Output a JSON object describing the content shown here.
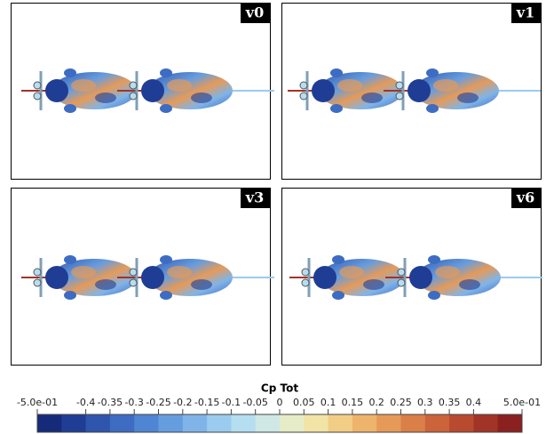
{
  "panels": [
    {
      "label": "v0"
    },
    {
      "label": "v1"
    },
    {
      "label": "v3"
    },
    {
      "label": "v6"
    }
  ],
  "colorbar": {
    "title": "Cp Tot",
    "lim": [
      -0.5,
      0.5
    ],
    "ticks": [
      {
        "value": -0.5,
        "label": "-5.0e-01"
      },
      -0.4,
      -0.35,
      -0.3,
      -0.25,
      -0.2,
      -0.15,
      -0.1,
      -0.05,
      0,
      0.05,
      0.1,
      0.15,
      0.2,
      0.25,
      0.3,
      0.35,
      0.4,
      {
        "value": 0.5,
        "label": "5.0e-01"
      }
    ],
    "colors": [
      "#162a7a",
      "#1f3d94",
      "#2f55ad",
      "#3d6cc2",
      "#4f85d2",
      "#669ddf",
      "#80b4e8",
      "#9bcbee",
      "#b5def0",
      "#cfe8e6",
      "#e6ecc8",
      "#f2e3a6",
      "#f2cd85",
      "#eeb46c",
      "#e69a58",
      "#da7f48",
      "#cb633b",
      "#b84a30",
      "#a23427",
      "#8a2020"
    ]
  }
}
